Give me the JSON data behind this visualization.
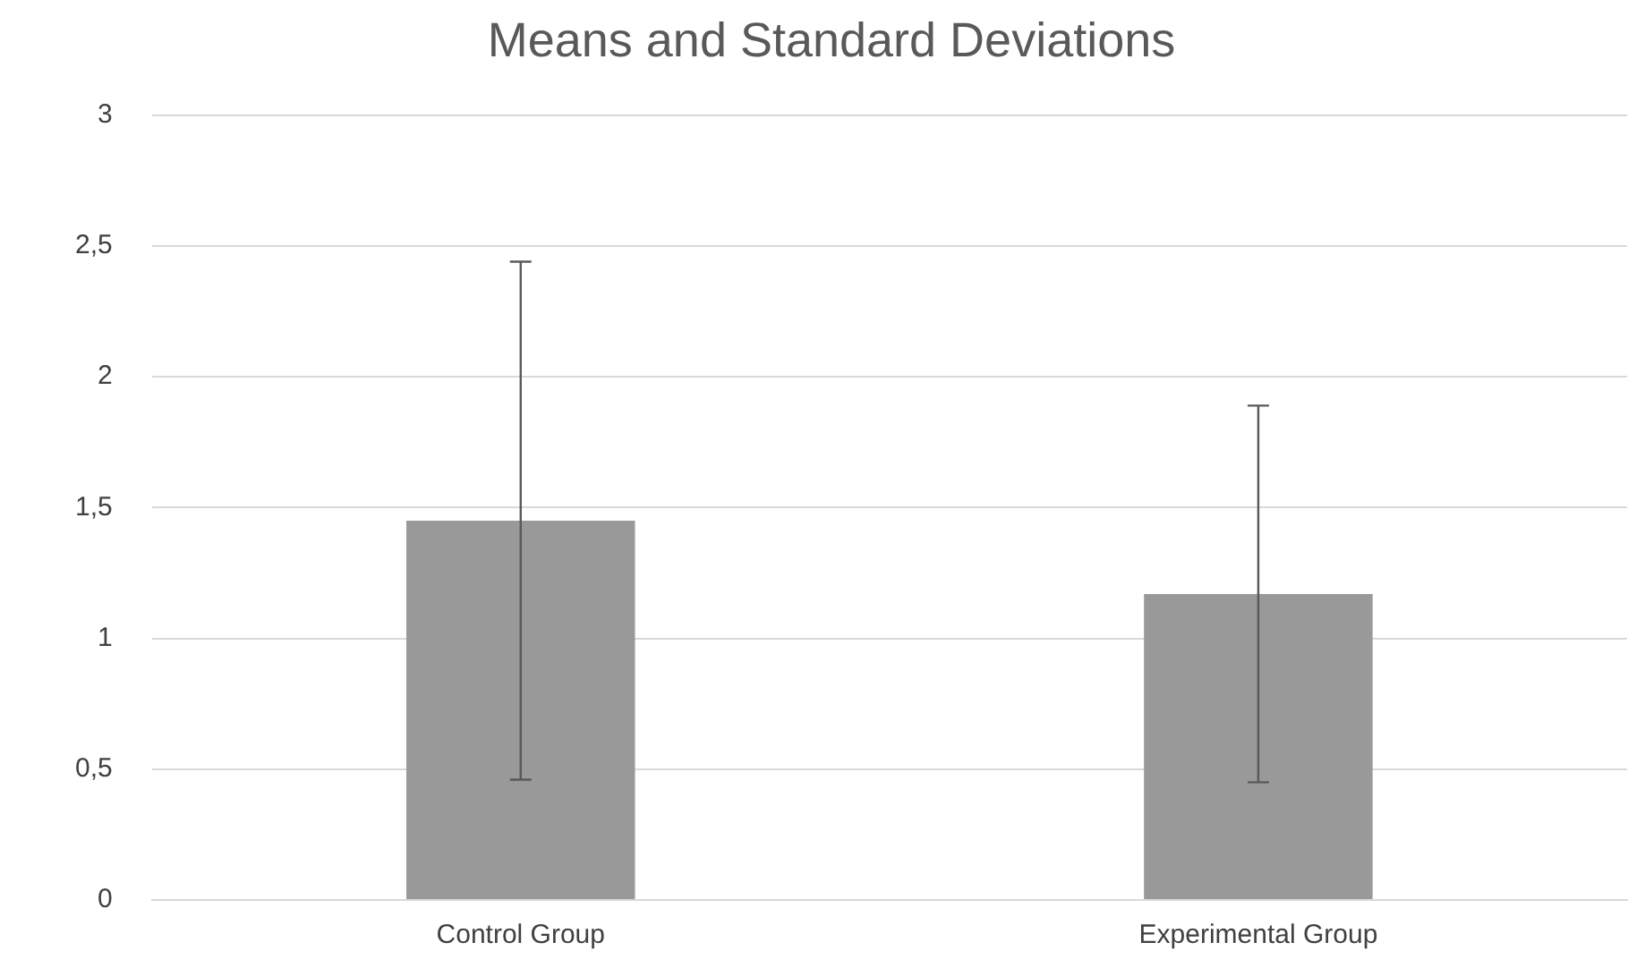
{
  "chart_data": {
    "type": "bar",
    "title": "Means and Standard Deviations",
    "categories": [
      "Control Group",
      "Experimental Group"
    ],
    "values": [
      1.45,
      1.17
    ],
    "errors": [
      0.99,
      0.72
    ],
    "color": "#999999",
    "ylim": [
      0,
      3
    ],
    "yticks": [
      0,
      {
        "value": 0.5,
        "label": "0,5"
      },
      1,
      {
        "value": 1.5,
        "label": "1,5"
      },
      2,
      {
        "value": 2.5,
        "label": "2,5"
      },
      3
    ],
    "grid": "y",
    "legend": false
  }
}
